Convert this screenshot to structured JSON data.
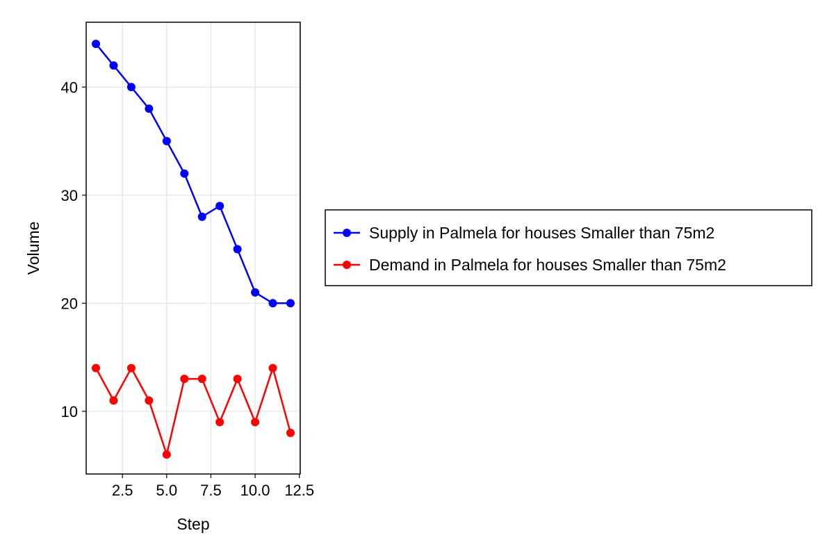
{
  "chart_data": {
    "type": "line",
    "title": "",
    "xlabel": "Step",
    "ylabel": "Volume",
    "x": [
      1,
      2,
      3,
      4,
      5,
      6,
      7,
      8,
      9,
      10,
      11,
      12
    ],
    "xlim": [
      0.45,
      12.55
    ],
    "ylim": [
      4.2,
      46.0
    ],
    "xticks": [
      2.5,
      5.0,
      7.5,
      10.0,
      12.5
    ],
    "xtick_labels": [
      "2.5",
      "5.0",
      "7.5",
      "10.0",
      "12.5"
    ],
    "yticks": [
      10,
      20,
      30,
      40
    ],
    "ytick_labels": [
      "10",
      "20",
      "30",
      "40"
    ],
    "grid": true,
    "legend_position": "right",
    "series": [
      {
        "name": "Supply in Palmela for houses Smaller than 75m2",
        "color": "#0000ff",
        "marker": "circle",
        "values": [
          44,
          42,
          40,
          38,
          35,
          32,
          28,
          29,
          25,
          21,
          20,
          20
        ]
      },
      {
        "name": "Demand in Palmela for houses Smaller than 75m2",
        "color": "#ff0000",
        "marker": "circle",
        "values": [
          14,
          11,
          14,
          11,
          6,
          13,
          13,
          9,
          13,
          9,
          14,
          8
        ]
      }
    ]
  }
}
